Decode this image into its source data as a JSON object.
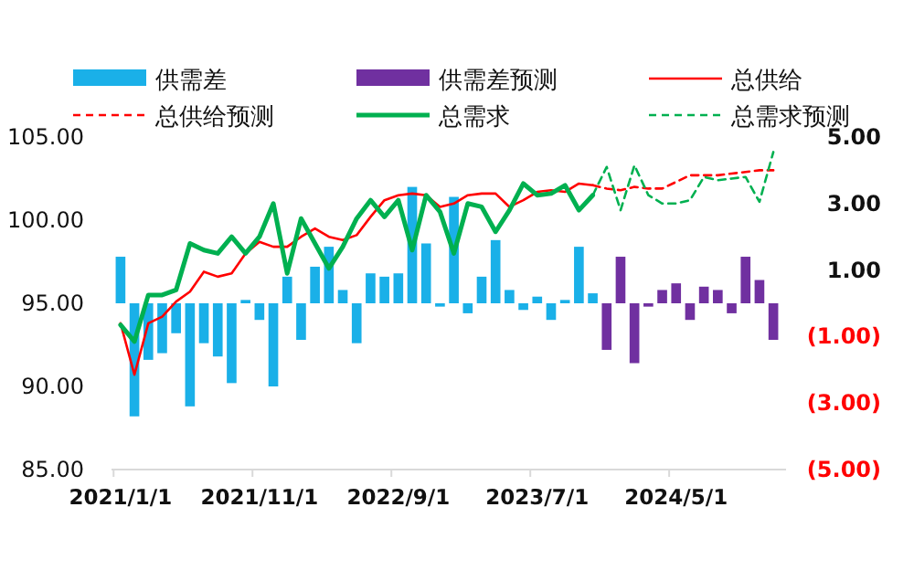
{
  "chart_data": {
    "type": "bar",
    "categories": [
      "2021/1/1",
      null,
      null,
      null,
      null,
      null,
      null,
      null,
      null,
      null,
      "2021/11/1",
      null,
      null,
      null,
      null,
      null,
      null,
      null,
      null,
      null,
      "2022/9/1",
      null,
      null,
      null,
      null,
      null,
      null,
      null,
      null,
      null,
      "2023/7/1",
      null,
      null,
      null,
      null,
      null,
      null,
      null,
      null,
      null,
      "2024/5/1",
      null,
      null,
      null,
      null,
      null,
      null,
      null
    ],
    "series": [
      {
        "name": "供需差",
        "axis": "y2",
        "color": "#1ab0e8",
        "values": [
          1.4,
          -3.4,
          -1.7,
          -1.5,
          -0.9,
          -3.1,
          -1.2,
          -1.6,
          -2.4,
          0.1,
          -0.5,
          -2.5,
          0.8,
          -1.1,
          1.1,
          1.7,
          0.4,
          -1.2,
          0.9,
          0.8,
          0.9,
          3.5,
          1.8,
          -0.1,
          3.2,
          -0.3,
          0.8,
          1.9,
          0.4,
          -0.2,
          0.2,
          -0.5,
          0.1,
          1.7,
          0.3,
          null,
          null,
          null,
          null,
          null,
          null,
          null,
          null,
          null,
          null,
          null,
          null,
          null
        ]
      },
      {
        "name": "供需差预测",
        "axis": "y2",
        "color": "#7030a0",
        "values": [
          null,
          null,
          null,
          null,
          null,
          null,
          null,
          null,
          null,
          null,
          null,
          null,
          null,
          null,
          null,
          null,
          null,
          null,
          null,
          null,
          null,
          null,
          null,
          null,
          null,
          null,
          null,
          null,
          null,
          null,
          null,
          null,
          null,
          null,
          null,
          -1.4,
          1.4,
          -1.8,
          -0.1,
          0.4,
          0.6,
          -0.5,
          0.5,
          0.4,
          -0.3,
          1.4,
          0.7,
          -1.1
        ]
      },
      {
        "name": "总供给",
        "type": "line",
        "line_style": "solid",
        "color": "#ff0000",
        "values": [
          93.8,
          90.7,
          93.8,
          94.2,
          95.1,
          95.7,
          96.9,
          96.6,
          96.8,
          98.0,
          98.7,
          98.4,
          98.4,
          99.0,
          99.5,
          99.0,
          98.8,
          99.1,
          100.2,
          101.2,
          101.5,
          101.6,
          101.5,
          100.8,
          101.0,
          101.5,
          101.6,
          101.6,
          100.8,
          101.2,
          101.7,
          101.8,
          101.7,
          102.2,
          102.1,
          null,
          null,
          null,
          null,
          null,
          null,
          null,
          null,
          null,
          null,
          null,
          null,
          null
        ]
      },
      {
        "name": "总供给预测",
        "type": "line",
        "line_style": "dashed",
        "color": "#ff0000",
        "values": [
          null,
          null,
          null,
          null,
          null,
          null,
          null,
          null,
          null,
          null,
          null,
          null,
          null,
          null,
          null,
          null,
          null,
          null,
          null,
          null,
          null,
          null,
          null,
          null,
          null,
          null,
          null,
          null,
          null,
          null,
          null,
          null,
          null,
          null,
          102.1,
          101.9,
          101.8,
          102.0,
          101.9,
          101.9,
          102.3,
          102.7,
          102.7,
          102.7,
          102.8,
          102.9,
          103.0,
          103.0
        ]
      },
      {
        "name": "总需求",
        "type": "line",
        "line_style": "solid",
        "color": "#00b050",
        "values": [
          93.7,
          92.7,
          95.5,
          95.5,
          95.8,
          98.6,
          98.2,
          98.0,
          99.0,
          98.0,
          99.0,
          101.0,
          96.8,
          100.1,
          98.6,
          97.1,
          98.4,
          100.1,
          101.2,
          100.2,
          101.2,
          98.2,
          101.5,
          100.5,
          98.0,
          101.0,
          100.8,
          99.3,
          100.6,
          102.2,
          101.5,
          101.6,
          102.1,
          100.6,
          101.5,
          null,
          null,
          null,
          null,
          null,
          null,
          null,
          null,
          null,
          null,
          null,
          null,
          null
        ]
      },
      {
        "name": "总需求预测",
        "type": "line",
        "line_style": "dashed",
        "color": "#00b050",
        "values": [
          null,
          null,
          null,
          null,
          null,
          null,
          null,
          null,
          null,
          null,
          null,
          null,
          null,
          null,
          null,
          null,
          null,
          null,
          null,
          null,
          null,
          null,
          null,
          null,
          null,
          null,
          null,
          null,
          null,
          null,
          null,
          null,
          null,
          null,
          101.5,
          103.2,
          100.6,
          103.3,
          101.5,
          101.0,
          101.0,
          101.2,
          102.6,
          102.4,
          102.5,
          102.6,
          101.1,
          104.1
        ]
      }
    ],
    "ylim": [
      85,
      105
    ],
    "yticks": [
      {
        "value": 85,
        "label": "85.00"
      },
      {
        "value": 90,
        "label": "90.00"
      },
      {
        "value": 95,
        "label": "95.00"
      },
      {
        "value": 100,
        "label": "100.00"
      },
      {
        "value": 105,
        "label": "105.00"
      }
    ],
    "y2lim": [
      -5,
      5
    ],
    "y2ticks": [
      {
        "value": -5,
        "label": "(5.00)"
      },
      {
        "value": -3,
        "label": "(3.00)"
      },
      {
        "value": -1,
        "label": "(1.00)"
      },
      {
        "value": 1,
        "label": "1.00"
      },
      {
        "value": 3,
        "label": "3.00"
      },
      {
        "value": 5,
        "label": "5.00"
      }
    ],
    "grid": false,
    "legend": "top"
  }
}
